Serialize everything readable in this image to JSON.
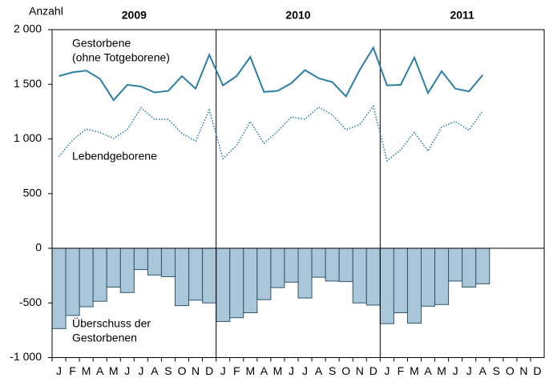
{
  "chart_data": {
    "type": "combo",
    "y_label": "Anzahl",
    "groups": [
      "2009",
      "2010",
      "2011"
    ],
    "categories": [
      "J",
      "F",
      "M",
      "A",
      "M",
      "J",
      "J",
      "A",
      "S",
      "O",
      "N",
      "D",
      "J",
      "F",
      "M",
      "A",
      "M",
      "J",
      "J",
      "A",
      "S",
      "O",
      "N",
      "D",
      "J",
      "F",
      "M",
      "A",
      "M",
      "J",
      "J",
      "A",
      "S",
      "O",
      "N",
      "D"
    ],
    "ylim": [
      -1000,
      2000
    ],
    "yticks": [
      {
        "value": 2000,
        "label": "2 000"
      },
      {
        "value": 1500,
        "label": "1 500"
      },
      {
        "value": 1000,
        "label": "1 000"
      },
      500,
      0,
      -500,
      {
        "value": -1000,
        "label": "-1 000"
      }
    ],
    "series": [
      {
        "name": [
          "Gestorbene",
          "(ohne Totgeborene)"
        ],
        "type": "line",
        "style": "solid",
        "color": "#2b7ea6",
        "values": [
          1575,
          1610,
          1625,
          1550,
          1355,
          1495,
          1480,
          1425,
          1440,
          1575,
          1460,
          1770,
          1490,
          1575,
          1750,
          1430,
          1440,
          1510,
          1630,
          1555,
          1520,
          1390,
          1630,
          1835,
          1490,
          1495,
          1745,
          1420,
          1620,
          1460,
          1435,
          1585,
          null,
          null,
          null,
          null
        ]
      },
      {
        "name": [
          "Lebendgeborene"
        ],
        "type": "line",
        "style": "dotted",
        "color": "#2b7ea6",
        "values": [
          840,
          990,
          1090,
          1060,
          1005,
          1085,
          1285,
          1180,
          1180,
          1050,
          980,
          1265,
          820,
          940,
          1160,
          960,
          1070,
          1200,
          1180,
          1290,
          1220,
          1085,
          1130,
          1300,
          800,
          900,
          1060,
          890,
          1110,
          1160,
          1080,
          1255,
          null,
          null,
          null,
          null
        ]
      },
      {
        "name": [
          "Überschuss der",
          "Gestorbenen"
        ],
        "type": "bar",
        "color": "#a9c7d8",
        "values": [
          -735,
          -615,
          -535,
          -485,
          -355,
          -405,
          -195,
          -245,
          -260,
          -525,
          -475,
          -500,
          -670,
          -635,
          -590,
          -470,
          -360,
          -310,
          -455,
          -265,
          -300,
          -305,
          -500,
          -520,
          -690,
          -590,
          -685,
          -530,
          -515,
          -300,
          -355,
          -325,
          null,
          null,
          null,
          null
        ]
      }
    ]
  }
}
